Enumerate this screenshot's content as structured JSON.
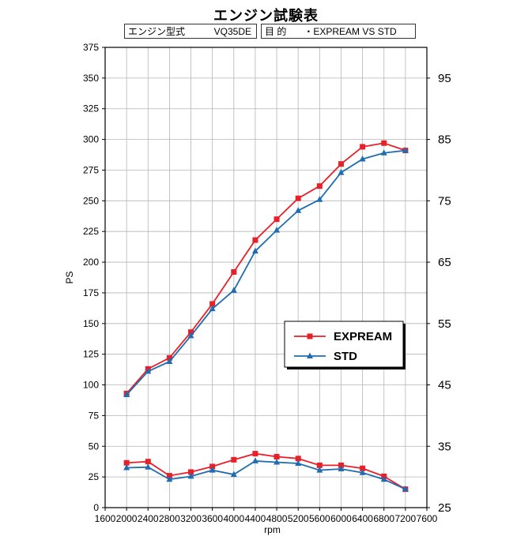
{
  "header": {
    "title": "エンジン試験表",
    "engine_label": "エンジン型式",
    "engine_value": "VQ35DE",
    "purpose_label": "目 的",
    "purpose_value": "・EXPREAM VS STD"
  },
  "chart_data": {
    "type": "line",
    "title": "エンジン試験表",
    "xlabel": "rpm",
    "ylabel": "PS",
    "xlim": [
      1600,
      7600
    ],
    "ylim": [
      0,
      375
    ],
    "y2lim": [
      25,
      100
    ],
    "x_ticks": [
      1600,
      2000,
      2400,
      2800,
      3200,
      3600,
      4000,
      4400,
      4800,
      5200,
      5600,
      6000,
      6400,
      6800,
      7200,
      7600
    ],
    "y_ticks": [
      0,
      25,
      50,
      75,
      100,
      125,
      150,
      175,
      200,
      225,
      250,
      275,
      300,
      325,
      350,
      375
    ],
    "y2_ticks": [
      25,
      35,
      45,
      55,
      65,
      75,
      85,
      95
    ],
    "grid": true,
    "legend_position": "center-right",
    "x": [
      2000,
      2400,
      2800,
      3200,
      3600,
      4000,
      4400,
      4800,
      5200,
      5600,
      6000,
      6400,
      6800,
      7200
    ],
    "series": [
      {
        "name": "EXPREAM",
        "color": "#e8202a",
        "marker": "square",
        "power": [
          93,
          113,
          122,
          143,
          166,
          192,
          218,
          235,
          252,
          262,
          280,
          294,
          297,
          291
        ],
        "torque": [
          32.3,
          32.5,
          30.2,
          30.8,
          31.7,
          32.8,
          33.8,
          33.3,
          33.0,
          31.9,
          31.9,
          31.4,
          30.1,
          28.0
        ]
      },
      {
        "name": "STD",
        "color": "#1f6cb0",
        "marker": "triangle",
        "power": [
          92,
          111,
          119,
          140,
          162,
          177,
          209,
          226,
          242,
          251,
          273,
          284,
          289,
          291
        ],
        "torque": [
          31.5,
          31.6,
          29.6,
          30.1,
          31.1,
          30.4,
          32.6,
          32.4,
          32.2,
          31.1,
          31.3,
          30.7,
          29.6,
          28.0
        ]
      }
    ]
  }
}
